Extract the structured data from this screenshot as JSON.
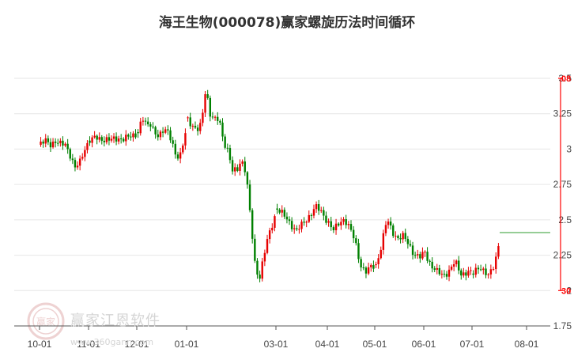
{
  "title": "海王生物(000078)赢家螺旋历法时间循环",
  "watermark": {
    "brand": "赢家江恩软件",
    "url": "www.360gann.com",
    "logo": "赢家"
  },
  "colors": {
    "up": "#e60000",
    "down": "#008000",
    "forecast": "#2e9b2e",
    "cycle": "#ff0000",
    "grid": "#e6e6e6"
  },
  "chart_data": {
    "type": "candlestick",
    "title": "海王生物(000078)赢家螺旋历法时间循环",
    "x_ticks": [
      "10-01",
      "11-01",
      "12-01",
      "01-01",
      "03-01",
      "04-01",
      "05-01",
      "06-01",
      "07-01",
      "08-01"
    ],
    "y_ticks": [
      "1.75",
      "2",
      "2.25",
      "2.5",
      "2.75",
      "3",
      "3.25",
      "3.5"
    ],
    "ylim": [
      1.75,
      3.5
    ],
    "grid": true,
    "cycle_markers": [
      {
        "label": "08",
        "price": 3.5
      },
      {
        "label": "30",
        "price": 2.0
      }
    ],
    "forecast_line": {
      "price": 2.41,
      "from": "07-01",
      "to": "08-01"
    },
    "segments": [
      {
        "from": "10-01",
        "to": "11-01",
        "prices": [
          3.03,
          3.06,
          3.04,
          3.05,
          3.03,
          3.04,
          2.96,
          2.86,
          2.91,
          3.01,
          3.06
        ]
      },
      {
        "from": "11-01",
        "to": "12-01",
        "prices": [
          3.06,
          3.08,
          3.07,
          3.06,
          3.08,
          3.07,
          3.09,
          3.12
        ]
      },
      {
        "from": "12-01",
        "to": "01-01",
        "prices": [
          3.12,
          3.22,
          3.16,
          3.18,
          3.13,
          3.08,
          3.12,
          3.14,
          3.08,
          2.96,
          2.92,
          3.06,
          3.22
        ]
      },
      {
        "from": "01-01",
        "to": "03-01",
        "prices": [
          3.22,
          3.16,
          3.12,
          3.18,
          3.44,
          3.24,
          3.2,
          3.22,
          3.06,
          2.98,
          2.84,
          2.86,
          2.93,
          2.83,
          2.52,
          2.2,
          2.08,
          2.24,
          2.38,
          2.48,
          2.58
        ]
      },
      {
        "from": "03-01",
        "to": "04-01",
        "prices": [
          2.58,
          2.53,
          2.48,
          2.42,
          2.47,
          2.53,
          2.59,
          2.55,
          2.48
        ]
      },
      {
        "from": "04-01",
        "to": "05-01",
        "prices": [
          2.48,
          2.42,
          2.48,
          2.51,
          2.44,
          2.35,
          2.19,
          2.13,
          2.16,
          2.18
        ]
      },
      {
        "from": "05-01",
        "to": "06-01",
        "prices": [
          2.18,
          2.32,
          2.5,
          2.42,
          2.37,
          2.38,
          2.33,
          2.26,
          2.23,
          2.27
        ]
      },
      {
        "from": "06-01",
        "to": "07-01",
        "prices": [
          2.27,
          2.18,
          2.13,
          2.11,
          2.14,
          2.2,
          2.12,
          2.13,
          2.12
        ]
      },
      {
        "from": "07-01",
        "to": "07-18",
        "prices": [
          2.12,
          2.16,
          2.17,
          2.12,
          2.1,
          2.16,
          2.27,
          2.41
        ]
      }
    ]
  }
}
